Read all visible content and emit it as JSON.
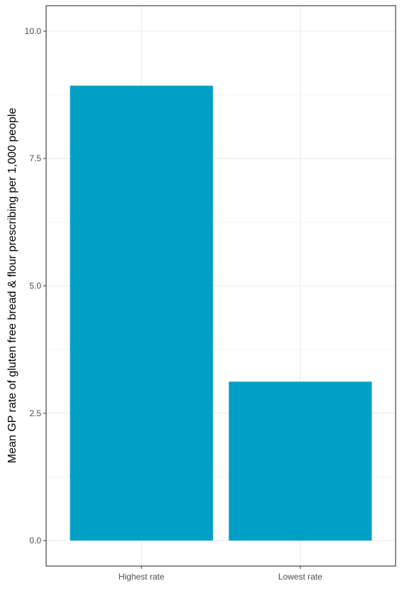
{
  "chart_data": {
    "type": "bar",
    "categories": [
      "Highest rate",
      "Lowest rate"
    ],
    "values": [
      8.93,
      3.12
    ],
    "title": "",
    "xlabel": "",
    "ylabel": "Mean GP rate of gluten free bread & flour prescribing per 1,000 people",
    "ylim": [
      -0.5,
      10.5
    ],
    "yticks": [
      0,
      2.5,
      5,
      7.5,
      10
    ],
    "ytick_labels": [
      "0.0",
      "2.5",
      "5.0",
      "7.5",
      "10.0"
    ],
    "grid": true,
    "bar_color": "#00a0c6"
  }
}
